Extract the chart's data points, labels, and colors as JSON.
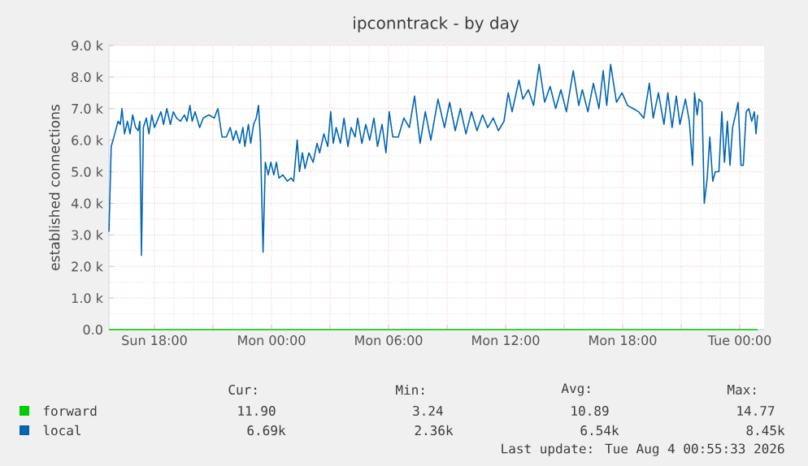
{
  "chart_data": {
    "type": "line",
    "title": "ipconntrack - by day",
    "ylabel": "established connections",
    "xlim": [
      "2026-08-02T15:40",
      "2026-08-04T01:15"
    ],
    "xticks": [
      {
        "value": "2026-08-02T18:00",
        "label": "Sun 18:00"
      },
      {
        "value": "2026-08-02T21:00",
        "label": null
      },
      {
        "value": "2026-08-03T00:00",
        "label": "Mon 00:00"
      },
      {
        "value": "2026-08-03T03:00",
        "label": null
      },
      {
        "value": "2026-08-03T06:00",
        "label": "Mon 06:00"
      },
      {
        "value": "2026-08-03T09:00",
        "label": null
      },
      {
        "value": "2026-08-03T12:00",
        "label": "Mon 12:00"
      },
      {
        "value": "2026-08-03T15:00",
        "label": null
      },
      {
        "value": "2026-08-03T18:00",
        "label": "Mon 18:00"
      },
      {
        "value": "2026-08-03T21:00",
        "label": null
      },
      {
        "value": "2026-08-04T00:00",
        "label": "Tue 00:00"
      }
    ],
    "ylim": [
      0,
      9000
    ],
    "yticks": [
      {
        "value": 0,
        "label": "0.0"
      },
      {
        "value": 1000,
        "label": "1.0 k"
      },
      {
        "value": 2000,
        "label": "2.0 k"
      },
      {
        "value": 3000,
        "label": "3.0 k"
      },
      {
        "value": 4000,
        "label": "4.0 k"
      },
      {
        "value": 5000,
        "label": "5.0 k"
      },
      {
        "value": 6000,
        "label": "6.0 k"
      },
      {
        "value": 7000,
        "label": "7.0 k"
      },
      {
        "value": 8000,
        "label": "8.0 k"
      },
      {
        "value": 9000,
        "label": "9.0 k"
      }
    ],
    "grid": true,
    "legend": "bottom",
    "series": [
      {
        "name": "forward",
        "color": "#00cc00",
        "x": [
          "2026-08-02T15:40",
          "2026-08-04T00:55"
        ],
        "values": [
          0,
          0
        ]
      },
      {
        "name": "local",
        "color": "#0066b3",
        "x": [
          "2026-08-02T15:40",
          "2026-08-02T15:47",
          "2026-08-02T15:58",
          "2026-08-02T16:08",
          "2026-08-02T16:15",
          "2026-08-02T16:20",
          "2026-08-02T16:28",
          "2026-08-02T16:37",
          "2026-08-02T16:45",
          "2026-08-02T16:53",
          "2026-08-02T17:02",
          "2026-08-02T17:10",
          "2026-08-02T17:15",
          "2026-08-02T17:20",
          "2026-08-02T17:26",
          "2026-08-02T17:35",
          "2026-08-02T17:43",
          "2026-08-02T17:52",
          "2026-08-02T18:00",
          "2026-08-02T18:08",
          "2026-08-02T18:20",
          "2026-08-02T18:28",
          "2026-08-02T18:38",
          "2026-08-02T18:49",
          "2026-08-02T18:58",
          "2026-08-02T19:08",
          "2026-08-02T19:20",
          "2026-08-02T19:32",
          "2026-08-02T19:40",
          "2026-08-02T19:49",
          "2026-08-02T19:56",
          "2026-08-02T20:05",
          "2026-08-02T20:19",
          "2026-08-02T20:30",
          "2026-08-02T20:47",
          "2026-08-02T21:04",
          "2026-08-02T21:15",
          "2026-08-02T21:28",
          "2026-08-02T21:41",
          "2026-08-02T21:53",
          "2026-08-02T22:02",
          "2026-08-02T22:11",
          "2026-08-02T22:22",
          "2026-08-02T22:32",
          "2026-08-02T22:38",
          "2026-08-02T22:49",
          "2026-08-02T22:56",
          "2026-08-02T23:05",
          "2026-08-02T23:13",
          "2026-08-02T23:20",
          "2026-08-02T23:26",
          "2026-08-02T23:34",
          "2026-08-02T23:41",
          "2026-08-02T23:50",
          "2026-08-02T23:58",
          "2026-08-03T00:07",
          "2026-08-03T00:15",
          "2026-08-03T00:23",
          "2026-08-03T00:35",
          "2026-08-03T00:49",
          "2026-08-03T01:00",
          "2026-08-03T01:08",
          "2026-08-03T01:19",
          "2026-08-03T01:26",
          "2026-08-03T01:35",
          "2026-08-03T01:43",
          "2026-08-03T01:55",
          "2026-08-03T02:08",
          "2026-08-03T02:20",
          "2026-08-03T02:28",
          "2026-08-03T02:41",
          "2026-08-03T02:53",
          "2026-08-03T03:02",
          "2026-08-03T03:10",
          "2026-08-03T03:19",
          "2026-08-03T03:32",
          "2026-08-03T03:43",
          "2026-08-03T03:55",
          "2026-08-03T04:05",
          "2026-08-03T04:17",
          "2026-08-03T04:25",
          "2026-08-03T04:38",
          "2026-08-03T04:50",
          "2026-08-03T05:02",
          "2026-08-03T05:15",
          "2026-08-03T05:26",
          "2026-08-03T05:40",
          "2026-08-03T05:52",
          "2026-08-03T06:02",
          "2026-08-03T06:13",
          "2026-08-03T06:30",
          "2026-08-03T06:47",
          "2026-08-03T07:04",
          "2026-08-03T07:20",
          "2026-08-03T07:37",
          "2026-08-03T07:53",
          "2026-08-03T08:10",
          "2026-08-03T08:32",
          "2026-08-03T08:52",
          "2026-08-03T09:08",
          "2026-08-03T09:25",
          "2026-08-03T09:41",
          "2026-08-03T09:58",
          "2026-08-03T10:15",
          "2026-08-03T10:32",
          "2026-08-03T10:49",
          "2026-08-03T11:05",
          "2026-08-03T11:22",
          "2026-08-03T11:38",
          "2026-08-03T11:55",
          "2026-08-03T12:08",
          "2026-08-03T12:20",
          "2026-08-03T12:41",
          "2026-08-03T12:53",
          "2026-08-03T13:10",
          "2026-08-03T13:26",
          "2026-08-03T13:43",
          "2026-08-03T14:00",
          "2026-08-03T14:17",
          "2026-08-03T14:34",
          "2026-08-03T14:50",
          "2026-08-03T15:07",
          "2026-08-03T15:28",
          "2026-08-03T15:45",
          "2026-08-03T15:56",
          "2026-08-03T16:13",
          "2026-08-03T16:30",
          "2026-08-03T16:47",
          "2026-08-03T17:00",
          "2026-08-03T17:11",
          "2026-08-03T17:23",
          "2026-08-03T17:41",
          "2026-08-03T17:58",
          "2026-08-03T18:15",
          "2026-08-03T18:32",
          "2026-08-03T18:49",
          "2026-08-03T19:05",
          "2026-08-03T19:22",
          "2026-08-03T19:34",
          "2026-08-03T19:50",
          "2026-08-03T20:07",
          "2026-08-03T20:19",
          "2026-08-03T20:32",
          "2026-08-03T20:45",
          "2026-08-03T20:56",
          "2026-08-03T21:13",
          "2026-08-03T21:25",
          "2026-08-03T21:35",
          "2026-08-03T21:41",
          "2026-08-03T21:49",
          "2026-08-03T21:55",
          "2026-08-03T22:04",
          "2026-08-03T22:11",
          "2026-08-03T22:20",
          "2026-08-03T22:28",
          "2026-08-03T22:37",
          "2026-08-03T22:45",
          "2026-08-03T22:56",
          "2026-08-03T23:05",
          "2026-08-03T23:13",
          "2026-08-03T23:22",
          "2026-08-03T23:30",
          "2026-08-03T23:38",
          "2026-08-03T23:47",
          "2026-08-03T23:55",
          "2026-08-04T00:04",
          "2026-08-04T00:11",
          "2026-08-04T00:20",
          "2026-08-04T00:28",
          "2026-08-04T00:37",
          "2026-08-04T00:45",
          "2026-08-04T00:50",
          "2026-08-04T00:55"
        ],
        "values": [
          3100,
          5800,
          6200,
          6600,
          6500,
          7000,
          6200,
          6600,
          6200,
          6800,
          6400,
          6300,
          6600,
          2350,
          6400,
          6700,
          6200,
          6800,
          6400,
          6600,
          6900,
          6500,
          7000,
          6500,
          6900,
          6700,
          6600,
          6800,
          6600,
          7100,
          6600,
          6900,
          6400,
          6700,
          6800,
          6700,
          7000,
          6100,
          6100,
          6400,
          6000,
          6300,
          5900,
          6400,
          5800,
          6500,
          5900,
          6500,
          6700,
          7100,
          6000,
          2450,
          5300,
          4900,
          5300,
          4900,
          5300,
          4800,
          4900,
          4700,
          4800,
          4700,
          6000,
          5000,
          5600,
          5100,
          5600,
          5300,
          5900,
          5600,
          6200,
          5800,
          6900,
          5900,
          6400,
          5900,
          6700,
          5800,
          6400,
          6100,
          6700,
          5900,
          6500,
          6000,
          6700,
          5800,
          6500,
          5600,
          6900,
          6100,
          6100,
          6700,
          6400,
          7400,
          5900,
          6900,
          6000,
          7300,
          6400,
          7200,
          6300,
          7000,
          6200,
          6900,
          6300,
          6800,
          6400,
          6700,
          6300,
          6600,
          7500,
          6900,
          7900,
          7300,
          7600,
          7100,
          8400,
          7200,
          7700,
          7000,
          7600,
          6900,
          8200,
          7100,
          7600,
          6900,
          7800,
          7000,
          8200,
          7100,
          8400,
          7200,
          7500,
          7100,
          7000,
          6900,
          6700,
          7800,
          6700,
          7500,
          6500,
          7500,
          6400,
          7400,
          6500,
          7300,
          6600,
          5200,
          7500,
          6800,
          7300,
          7200,
          4000,
          4800,
          6100,
          4700,
          5000,
          5000,
          6900,
          5300,
          6600,
          5200,
          6400,
          6800,
          7200,
          5200,
          5200,
          6900,
          7000,
          6600,
          6900,
          6200,
          6800
        ]
      }
    ],
    "annotations": [
      "Cur:",
      "Min:",
      "Avg:",
      "Max:",
      "11.90",
      "3.24",
      "10.89",
      "14.77",
      "6.69k",
      "2.36k",
      "6.54k",
      "8.45k",
      "Last update: Tue Aug  4 00:55:33 2026"
    ]
  }
}
